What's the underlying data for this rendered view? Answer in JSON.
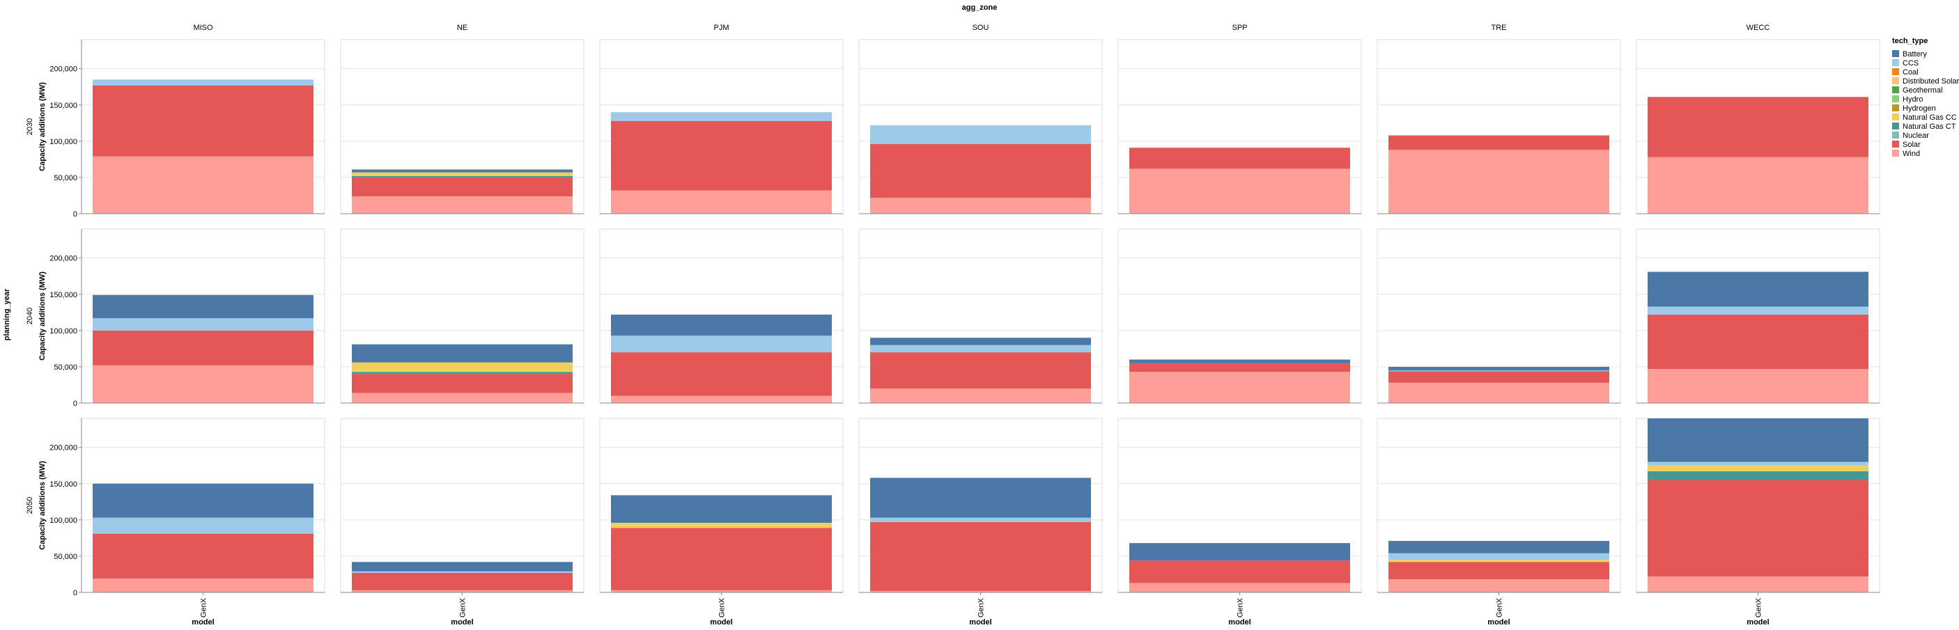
{
  "chart_data": {
    "type": "bar",
    "stacked": true,
    "title": "",
    "column_facet_title": "agg_zone",
    "row_facet_title": "planning_year",
    "xlabel": "model",
    "ylabel": "Capacity additions (MW)",
    "ylim": [
      0,
      240000
    ],
    "yticks": [
      0,
      50000,
      100000,
      150000,
      200000
    ],
    "ytick_labels": [
      "0",
      "50,000",
      "100,000",
      "150,000",
      "200,000"
    ],
    "grid": true,
    "legend_position": "right",
    "legend_title": "tech_type",
    "columns": [
      "MISO",
      "NE",
      "PJM",
      "SOU",
      "SPP",
      "TRE",
      "WECC"
    ],
    "rows": [
      "2030",
      "2040",
      "2050"
    ],
    "categories": [
      "GenX"
    ],
    "tech_types": [
      "Battery",
      "CCS",
      "Coal",
      "Distributed Solar",
      "Geothermal",
      "Hydro",
      "Hydrogen",
      "Natural Gas CC",
      "Natural Gas CT",
      "Nuclear",
      "Solar",
      "Wind"
    ],
    "colors": {
      "Battery": "#4c78a8",
      "CCS": "#9ecae9",
      "Coal": "#f58518",
      "Distributed Solar": "#ffbf79",
      "Geothermal": "#54a24b",
      "Hydro": "#88d27a",
      "Hydrogen": "#b79a20",
      "Natural Gas CC": "#f2cf5b",
      "Natural Gas CT": "#439894",
      "Nuclear": "#83bcb6",
      "Solar": "#e45756",
      "Wind": "#ff9d98"
    },
    "stack_order": [
      "Wind",
      "Solar",
      "Nuclear",
      "Natural Gas CT",
      "Natural Gas CC",
      "Hydrogen",
      "Hydro",
      "Geothermal",
      "Distributed Solar",
      "Coal",
      "CCS",
      "Battery"
    ],
    "panels": [
      {
        "row": "2030",
        "col": "MISO",
        "values": {
          "Wind": 79000,
          "Solar": 98000,
          "CCS": 8000
        }
      },
      {
        "row": "2030",
        "col": "NE",
        "values": {
          "Wind": 24000,
          "Solar": 26000,
          "Natural Gas CC": 5000,
          "Natural Gas CT": 2000,
          "Battery": 4000
        }
      },
      {
        "row": "2030",
        "col": "PJM",
        "values": {
          "Wind": 32000,
          "Solar": 96000,
          "CCS": 12000
        }
      },
      {
        "row": "2030",
        "col": "SOU",
        "values": {
          "Wind": 22000,
          "Solar": 74000,
          "CCS": 26000
        }
      },
      {
        "row": "2030",
        "col": "SPP",
        "values": {
          "Wind": 62000,
          "Solar": 29000
        }
      },
      {
        "row": "2030",
        "col": "TRE",
        "values": {
          "Wind": 88000,
          "Solar": 20000
        }
      },
      {
        "row": "2030",
        "col": "WECC",
        "values": {
          "Wind": 78000,
          "Solar": 83000
        }
      },
      {
        "row": "2040",
        "col": "MISO",
        "values": {
          "Wind": 52000,
          "Solar": 48000,
          "CCS": 17000,
          "Battery": 32000
        }
      },
      {
        "row": "2040",
        "col": "NE",
        "values": {
          "Wind": 14000,
          "Solar": 26000,
          "Natural Gas CT": 3000,
          "Natural Gas CC": 13000,
          "Battery": 25000
        }
      },
      {
        "row": "2040",
        "col": "PJM",
        "values": {
          "Wind": 10000,
          "Solar": 60000,
          "CCS": 23000,
          "Battery": 29000
        }
      },
      {
        "row": "2040",
        "col": "SOU",
        "values": {
          "Wind": 20000,
          "Solar": 50000,
          "CCS": 10000,
          "Battery": 10000
        }
      },
      {
        "row": "2040",
        "col": "SPP",
        "values": {
          "Wind": 43000,
          "Solar": 12000,
          "Battery": 5000
        }
      },
      {
        "row": "2040",
        "col": "TRE",
        "values": {
          "Wind": 28000,
          "Solar": 16000,
          "CCS": 1000,
          "Battery": 5000
        }
      },
      {
        "row": "2040",
        "col": "WECC",
        "values": {
          "Wind": 47000,
          "Solar": 75000,
          "CCS": 11000,
          "Battery": 48000
        }
      },
      {
        "row": "2050",
        "col": "MISO",
        "values": {
          "Wind": 19000,
          "Solar": 62000,
          "CCS": 22000,
          "Battery": 47000
        }
      },
      {
        "row": "2050",
        "col": "NE",
        "values": {
          "Wind": 3000,
          "Solar": 24000,
          "CCS": 2000,
          "Battery": 13000
        }
      },
      {
        "row": "2050",
        "col": "PJM",
        "values": {
          "Wind": 3000,
          "Solar": 86000,
          "Natural Gas CC": 7000,
          "Battery": 38000
        }
      },
      {
        "row": "2050",
        "col": "SOU",
        "values": {
          "Wind": 2000,
          "Solar": 95000,
          "CCS": 6000,
          "Battery": 55000
        }
      },
      {
        "row": "2050",
        "col": "SPP",
        "values": {
          "Wind": 13000,
          "Solar": 31000,
          "Battery": 24000
        }
      },
      {
        "row": "2050",
        "col": "TRE",
        "values": {
          "Wind": 18000,
          "Solar": 24000,
          "Natural Gas CC": 3000,
          "CCS": 9000,
          "Battery": 17000
        }
      },
      {
        "row": "2050",
        "col": "WECC",
        "values": {
          "Wind": 22000,
          "Solar": 133000,
          "Natural Gas CT": 12000,
          "Natural Gas CC": 8000,
          "CCS": 5000,
          "Battery": 60000
        }
      }
    ]
  }
}
